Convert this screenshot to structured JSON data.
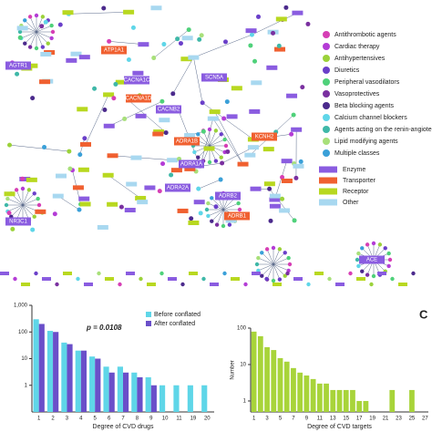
{
  "network": {
    "labels": [
      "ATP1A1",
      "AGTR1",
      "CACNA1C",
      "CACNA1D",
      "CACNB2",
      "SCN5A",
      "ADRA1B",
      "ADRA1A",
      "ADRB2",
      "ADRB1",
      "NR3C1",
      "ACE",
      "KCNH2",
      "ADRA2A"
    ],
    "legend": [
      {
        "name": "Antithrombotic agents",
        "color": "#d63fb5"
      },
      {
        "name": "Cardiac therapy",
        "color": "#b43cd6"
      },
      {
        "name": "Antihypertensives",
        "color": "#9bd23a"
      },
      {
        "name": "Diuretics",
        "color": "#6a3fc9"
      },
      {
        "name": "Peripheral vasodilators",
        "color": "#4fd17a"
      },
      {
        "name": "Vasoprotectives",
        "color": "#7a30a0"
      },
      {
        "name": "Beta blocking agents",
        "color": "#4b2a8c"
      },
      {
        "name": "Calcium channel blockers",
        "color": "#5fd6e8"
      },
      {
        "name": "Agents acting on the renin-angiotensin",
        "color": "#3fb8a8"
      },
      {
        "name": "Lipid modifying agents",
        "color": "#a8e07a"
      },
      {
        "name": "Multiple classes",
        "color": "#3aa0d8"
      }
    ],
    "types": [
      {
        "name": "Enzyme",
        "color": "#8a5ce0"
      },
      {
        "name": "Transporter",
        "color": "#f06030"
      },
      {
        "name": "Receptor",
        "color": "#b8d820"
      },
      {
        "name": "Other",
        "color": "#a8d8f0"
      }
    ]
  },
  "chart_data": [
    {
      "type": "bar",
      "annotation": "p = 0.0108",
      "x_label": "Degree of CVD drugs",
      "categories": [
        "1",
        "2",
        "3",
        "4",
        "5",
        "6",
        "7",
        "8",
        "9",
        "10",
        "11",
        "19",
        "20"
      ],
      "series": [
        {
          "name": "Before conflated",
          "color": "#5fd6e8",
          "values": [
            300,
            110,
            40,
            20,
            12,
            5,
            5,
            3,
            2,
            1,
            1,
            1,
            1
          ]
        },
        {
          "name": "After conflated",
          "color": "#6a4fc9",
          "values": [
            200,
            100,
            35,
            20,
            10,
            3,
            3,
            2,
            1,
            null,
            null,
            null,
            null
          ]
        }
      ],
      "log_y": true,
      "ylim": [
        0.1,
        1000
      ],
      "yticks": [
        1,
        10,
        100,
        {
          "value": 1000,
          "label": "1,000"
        }
      ]
    },
    {
      "type": "bar",
      "title": "C",
      "y_label": "Number",
      "x_label": "Degree of CVD targets",
      "categories": [
        "1",
        null,
        "3",
        null,
        "5",
        null,
        "7",
        null,
        "9",
        null,
        "11",
        null,
        "13",
        null,
        "15",
        null,
        "17",
        null,
        "19",
        null,
        "21",
        null,
        "23",
        null,
        "25",
        null,
        "27"
      ],
      "series": [
        {
          "name": null,
          "color": "#a8d43a",
          "values": [
            80,
            60,
            30,
            25,
            15,
            12,
            8,
            6,
            5,
            4,
            3,
            3,
            2,
            2,
            2,
            2,
            1,
            1,
            null,
            null,
            null,
            2,
            null,
            null,
            2,
            null,
            null
          ]
        }
      ],
      "log_y": true,
      "ylim": [
        0.5,
        100
      ],
      "yticks": [
        1,
        10,
        100
      ]
    }
  ]
}
